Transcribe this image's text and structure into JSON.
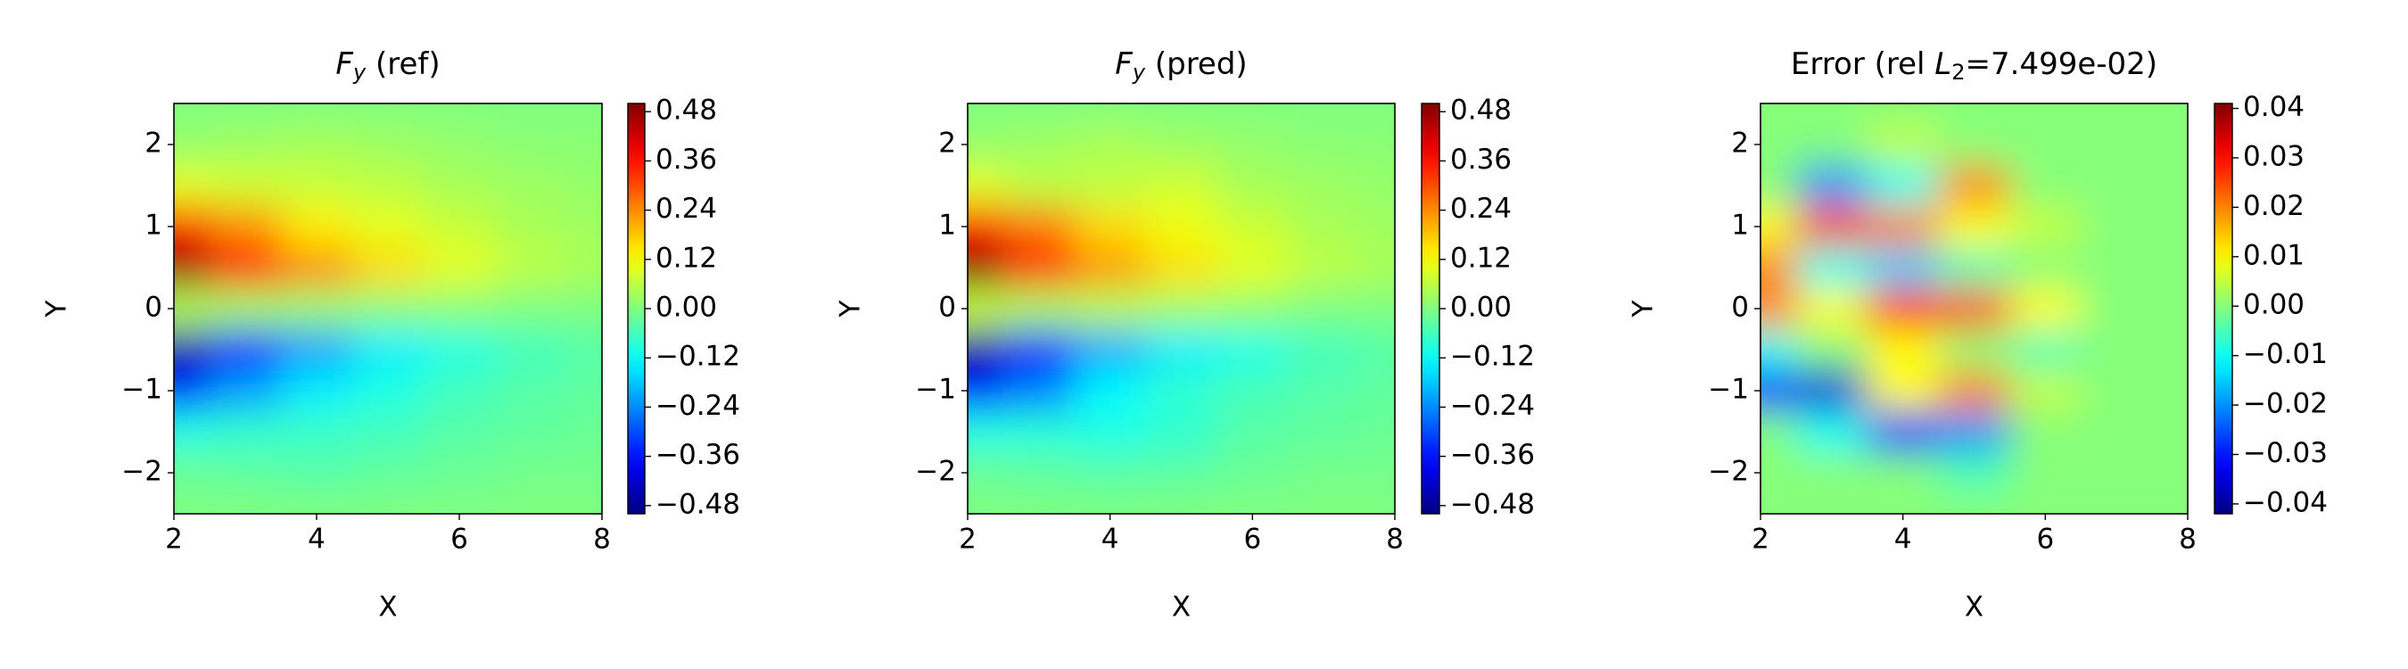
{
  "chart_data": [
    {
      "type": "contour",
      "colormap": "jet",
      "title": {
        "symbol": "F",
        "subscript": "y",
        "suffix": " (ref)"
      },
      "xlabel": "X",
      "ylabel": "Y",
      "x": [
        2,
        3,
        4,
        5,
        6,
        7,
        8
      ],
      "y": [
        2.5,
        2,
        1.5,
        1,
        0.5,
        0,
        -0.5,
        -1,
        -1.5,
        -2,
        -2.5
      ],
      "z": [
        [
          0,
          0,
          0,
          0,
          0,
          0,
          0
        ],
        [
          0.02,
          0.03,
          0.04,
          0.03,
          0.02,
          0.01,
          0.01
        ],
        [
          0.1,
          0.08,
          0.07,
          0.06,
          0.04,
          0.03,
          0.02
        ],
        [
          0.36,
          0.24,
          0.14,
          0.1,
          0.07,
          0.04,
          0.03
        ],
        [
          0.48,
          0.36,
          0.24,
          0.16,
          0.1,
          0.06,
          0.04
        ],
        [
          0.05,
          0.03,
          0.02,
          0.01,
          0.01,
          0,
          0
        ],
        [
          -0.46,
          -0.34,
          -0.22,
          -0.14,
          -0.1,
          -0.06,
          -0.04
        ],
        [
          -0.34,
          -0.22,
          -0.14,
          -0.1,
          -0.06,
          -0.04,
          -0.03
        ],
        [
          -0.1,
          -0.08,
          -0.07,
          -0.06,
          -0.04,
          -0.03,
          -0.02
        ],
        [
          -0.02,
          -0.03,
          -0.04,
          -0.03,
          -0.02,
          -0.01,
          -0.01
        ],
        [
          0,
          0,
          0,
          0,
          0,
          0,
          0
        ]
      ],
      "xlim": [
        2,
        8
      ],
      "ylim": [
        -2.5,
        2.5
      ],
      "xticks": [
        2,
        4,
        6,
        8
      ],
      "yticks": [
        {
          "value": -2,
          "label": "−2"
        },
        {
          "value": -1,
          "label": "−1"
        },
        0,
        1,
        2
      ],
      "zlim": [
        -0.5,
        0.5
      ],
      "zticks": [
        {
          "value": -0.48,
          "label": "−0.48"
        },
        {
          "value": -0.36,
          "label": "−0.36"
        },
        {
          "value": -0.24,
          "label": "−0.24"
        },
        {
          "value": -0.12,
          "label": "−0.12"
        },
        {
          "value": 0,
          "label": "0.00"
        },
        0.12,
        0.24,
        0.36,
        0.48
      ]
    },
    {
      "type": "contour",
      "colormap": "jet",
      "title": {
        "symbol": "F",
        "subscript": "y",
        "suffix": " (pred)"
      },
      "xlabel": "X",
      "ylabel": "Y",
      "x": [
        2,
        3,
        4,
        5,
        6,
        7,
        8
      ],
      "y": [
        2.5,
        2,
        1.5,
        1,
        0.5,
        0,
        -0.5,
        -1,
        -1.5,
        -2,
        -2.5
      ],
      "z": [
        [
          0,
          0,
          0,
          0,
          0,
          0,
          0
        ],
        [
          0.02,
          0.03,
          0.045,
          0.03,
          0.02,
          0.01,
          0.01
        ],
        [
          0.1,
          0.06,
          0.06,
          0.08,
          0.04,
          0.03,
          0.02
        ],
        [
          0.37,
          0.26,
          0.16,
          0.11,
          0.075,
          0.04,
          0.03
        ],
        [
          0.5,
          0.35,
          0.225,
          0.155,
          0.1,
          0.06,
          0.04
        ],
        [
          0.07,
          0.04,
          0.05,
          0.035,
          0.02,
          0,
          0
        ],
        [
          -0.47,
          -0.34,
          -0.21,
          -0.14,
          -0.105,
          -0.06,
          -0.04
        ],
        [
          -0.37,
          -0.255,
          -0.13,
          -0.08,
          -0.055,
          -0.04,
          -0.03
        ],
        [
          -0.1,
          -0.09,
          -0.1,
          -0.08,
          -0.04,
          -0.03,
          -0.02
        ],
        [
          -0.02,
          -0.03,
          -0.04,
          -0.035,
          -0.02,
          -0.01,
          -0.01
        ],
        [
          0,
          0,
          0,
          0,
          0,
          0,
          0
        ]
      ],
      "xlim": [
        2,
        8
      ],
      "ylim": [
        -2.5,
        2.5
      ],
      "xticks": [
        2,
        4,
        6,
        8
      ],
      "yticks": [
        {
          "value": -2,
          "label": "−2"
        },
        {
          "value": -1,
          "label": "−1"
        },
        0,
        1,
        2
      ],
      "zlim": [
        -0.5,
        0.5
      ],
      "zticks": [
        {
          "value": -0.48,
          "label": "−0.48"
        },
        {
          "value": -0.36,
          "label": "−0.36"
        },
        {
          "value": -0.24,
          "label": "−0.24"
        },
        {
          "value": -0.12,
          "label": "−0.12"
        },
        {
          "value": 0,
          "label": "0.00"
        },
        0.12,
        0.24,
        0.36,
        0.48
      ]
    },
    {
      "type": "contour",
      "colormap": "jet",
      "title": {
        "prefix": "Error (rel ",
        "symbol": "L",
        "subscript": "2",
        "suffix": "=7.499e-02)"
      },
      "xlabel": "X",
      "ylabel": "Y",
      "x": [
        2,
        3,
        4,
        5,
        6,
        7,
        8
      ],
      "y": [
        2.5,
        2,
        1.5,
        1,
        0.5,
        0,
        -0.5,
        -1,
        -1.5,
        -2,
        -2.5
      ],
      "z": [
        [
          0,
          0,
          0,
          0,
          0,
          0,
          0
        ],
        [
          0,
          0,
          0.005,
          0,
          0,
          0,
          0
        ],
        [
          0,
          -0.02,
          -0.01,
          0.02,
          0,
          0,
          0
        ],
        [
          0.01,
          0.025,
          0.02,
          0.01,
          0.005,
          0,
          0
        ],
        [
          0.02,
          -0.01,
          -0.015,
          -0.005,
          0,
          0,
          0
        ],
        [
          0.02,
          0.01,
          0.03,
          0.025,
          0.01,
          0,
          0
        ],
        [
          -0.01,
          0,
          0.01,
          0,
          -0.005,
          0,
          0
        ],
        [
          -0.03,
          -0.035,
          0.01,
          0.02,
          0.005,
          0,
          0
        ],
        [
          0,
          -0.01,
          -0.03,
          -0.02,
          0,
          0,
          0
        ],
        [
          0,
          0,
          0,
          -0.005,
          0,
          0,
          0
        ],
        [
          0,
          0,
          0,
          0,
          0,
          0,
          0
        ]
      ],
      "xlim": [
        2,
        8
      ],
      "ylim": [
        -2.5,
        2.5
      ],
      "xticks": [
        2,
        4,
        6,
        8
      ],
      "yticks": [
        {
          "value": -2,
          "label": "−2"
        },
        {
          "value": -1,
          "label": "−1"
        },
        0,
        1,
        2
      ],
      "zlim": [
        -0.042,
        0.041
      ],
      "zticks": [
        {
          "value": -0.04,
          "label": "−0.04"
        },
        {
          "value": -0.03,
          "label": "−0.03"
        },
        {
          "value": -0.02,
          "label": "−0.02"
        },
        {
          "value": -0.01,
          "label": "−0.01"
        },
        {
          "value": 0,
          "label": "0.00"
        },
        0.01,
        0.02,
        0.03,
        0.04
      ]
    }
  ]
}
